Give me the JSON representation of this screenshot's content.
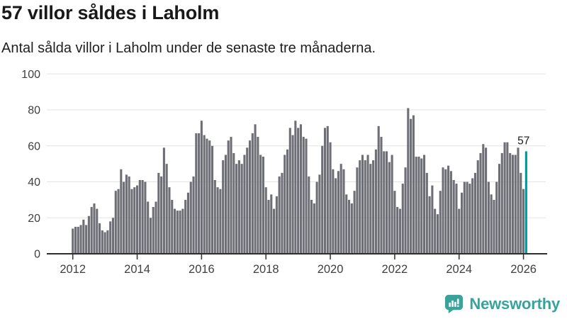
{
  "header": {
    "title": "57 villor såldes i Laholm",
    "subtitle": "Antal sålda villor i Laholm under de senaste tre månaderna."
  },
  "chart_data": {
    "type": "bar",
    "title": "57 villor såldes i Laholm",
    "xlabel": "",
    "ylabel": "",
    "x_start": "2012-01",
    "x_frequency": "monthly",
    "values": [
      14,
      15,
      15,
      16,
      19,
      16,
      21,
      26,
      28,
      25,
      17,
      13,
      12,
      13,
      18,
      20,
      35,
      36,
      47,
      40,
      44,
      43,
      36,
      37,
      38,
      41,
      41,
      40,
      29,
      20,
      26,
      29,
      45,
      43,
      59,
      50,
      37,
      30,
      25,
      24,
      24,
      25,
      30,
      34,
      40,
      43,
      67,
      67,
      74,
      66,
      64,
      63,
      60,
      41,
      37,
      36,
      52,
      55,
      63,
      65,
      56,
      50,
      52,
      50,
      55,
      59,
      63,
      67,
      72,
      65,
      55,
      54,
      37,
      30,
      33,
      25,
      32,
      43,
      45,
      55,
      58,
      70,
      66,
      74,
      70,
      72,
      65,
      64,
      43,
      30,
      28,
      40,
      44,
      60,
      70,
      71,
      62,
      47,
      42,
      46,
      50,
      47,
      33,
      30,
      28,
      35,
      48,
      52,
      55,
      52,
      55,
      50,
      52,
      58,
      71,
      65,
      57,
      57,
      51,
      55,
      35,
      26,
      25,
      39,
      48,
      81,
      75,
      77,
      54,
      54,
      53,
      55,
      45,
      32,
      38,
      25,
      22,
      35,
      48,
      47,
      49,
      46,
      41,
      39,
      25,
      34,
      40,
      40,
      39,
      42,
      45,
      52,
      56,
      61,
      59,
      40,
      33,
      30,
      40,
      50,
      56,
      62,
      62,
      56,
      55,
      55,
      59,
      45,
      36,
      57
    ],
    "ylim": [
      0,
      100
    ],
    "yticks": [
      0,
      20,
      40,
      60,
      80,
      100
    ],
    "xticks": [
      "2012",
      "2014",
      "2016",
      "2018",
      "2020",
      "2022",
      "2024",
      "2026"
    ],
    "grid": "horizontal",
    "legend": "none",
    "highlight_last": true,
    "last_value_label": "57",
    "colors": {
      "bar": "#6e6e76",
      "highlight": "#009a9a",
      "grid": "#e3e3e3",
      "axis": "#2e2e2e",
      "axis_text": "#3f3f3f",
      "annotation_text": "#1a1a1a"
    }
  },
  "footer": {
    "brand": "Newsworthy",
    "brand_color": "#38a39d"
  }
}
